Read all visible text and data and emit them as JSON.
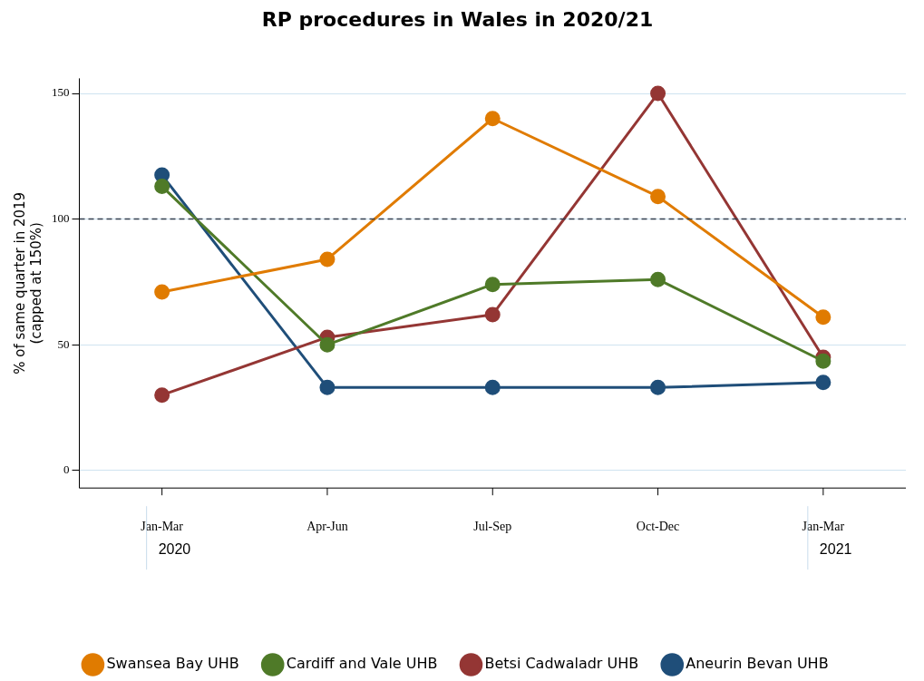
{
  "chart_data": {
    "type": "line",
    "title": "RP procedures in Wales in 2020/21",
    "ylabel": "% of same quarter in 2019\n(capped at 150%)",
    "categories": [
      "Jan-Mar",
      "Apr-Jun",
      "Jul-Sep",
      "Oct-Dec",
      "Jan-Mar"
    ],
    "series": [
      {
        "name": "Aneurin Bevan UHB",
        "color": "#1f4e79",
        "values": [
          117.5,
          33,
          33,
          33,
          35
        ]
      },
      {
        "name": "Betsi Cadwaladr UHB",
        "color": "#943634",
        "values": [
          30,
          53,
          62,
          150,
          45
        ]
      },
      {
        "name": "Cardiff and Vale UHB",
        "color": "#4f7a28",
        "values": [
          113,
          50,
          74,
          76,
          43.5
        ]
      },
      {
        "name": "Swansea Bay UHB",
        "color": "#e07b00",
        "values": [
          71,
          84,
          140,
          109,
          61
        ]
      }
    ],
    "ylim": [
      -7,
      156
    ],
    "yticks": [
      0,
      50,
      100,
      150
    ],
    "ref_lines": [
      {
        "axis": "y",
        "value": 100,
        "color": "#333f4f",
        "line_style": "dashed"
      }
    ],
    "annotations": [
      "2020",
      "2021"
    ],
    "grid": "y",
    "legend": "bottom",
    "marker": "circle",
    "line_style": "solid"
  }
}
